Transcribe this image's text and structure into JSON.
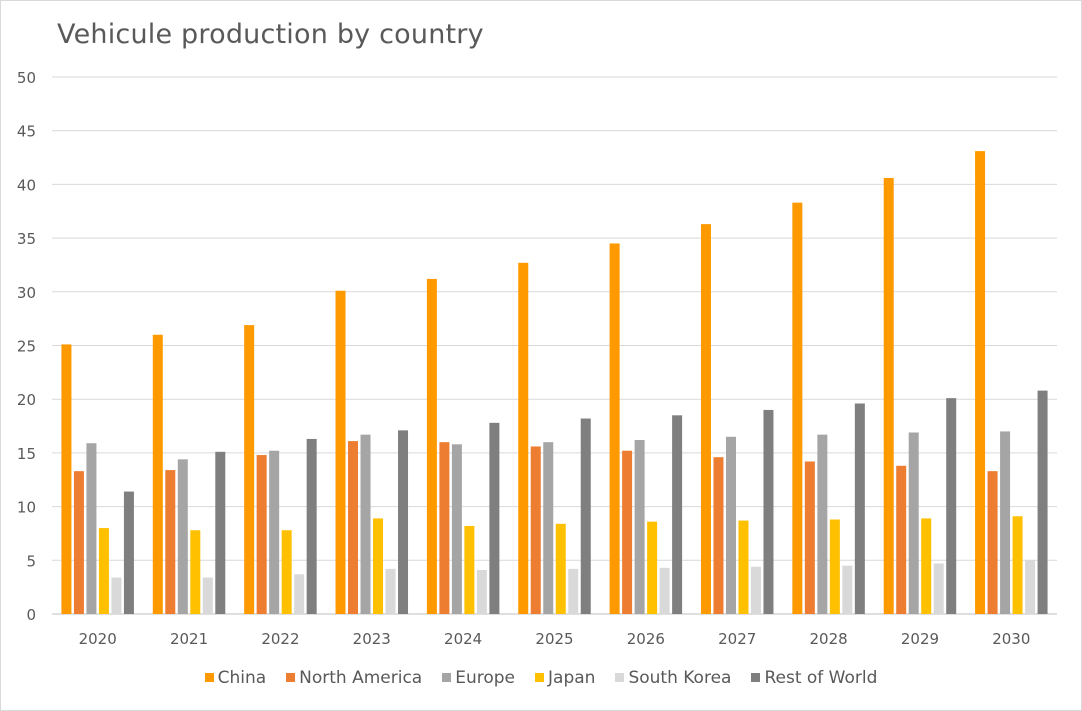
{
  "chart_data": {
    "type": "bar",
    "title": "Vehicule production by country",
    "xlabel": "",
    "ylabel": "",
    "ylim": [
      0,
      50
    ],
    "yticks": [
      0,
      5,
      10,
      15,
      20,
      25,
      30,
      35,
      40,
      45,
      50
    ],
    "grid": true,
    "legend_position": "bottom",
    "categories": [
      "2020",
      "2021",
      "2022",
      "2023",
      "2024",
      "2025",
      "2026",
      "2027",
      "2028",
      "2029",
      "2030"
    ],
    "series": [
      {
        "name": "China",
        "color": "#ff9900",
        "values": [
          25.1,
          26.0,
          26.9,
          30.1,
          31.2,
          32.7,
          34.5,
          36.3,
          38.3,
          40.6,
          43.1
        ]
      },
      {
        "name": "North America",
        "color": "#ed7d31",
        "values": [
          13.3,
          13.4,
          14.8,
          16.1,
          16.0,
          15.6,
          15.2,
          14.6,
          14.2,
          13.8,
          13.3
        ]
      },
      {
        "name": "Europe",
        "color": "#a5a5a5",
        "values": [
          15.9,
          14.4,
          15.2,
          16.7,
          15.8,
          16.0,
          16.2,
          16.5,
          16.7,
          16.9,
          17.0
        ]
      },
      {
        "name": "Japan",
        "color": "#ffc000",
        "values": [
          8.0,
          7.8,
          7.8,
          8.9,
          8.2,
          8.4,
          8.6,
          8.7,
          8.8,
          8.9,
          9.1
        ]
      },
      {
        "name": "South Korea",
        "color": "#d9d9d9",
        "values": [
          3.4,
          3.4,
          3.7,
          4.2,
          4.1,
          4.2,
          4.3,
          4.4,
          4.5,
          4.7,
          5.0
        ]
      },
      {
        "name": "Rest of World",
        "color": "#7f7f7f",
        "values": [
          11.4,
          15.1,
          16.3,
          17.1,
          17.8,
          18.2,
          18.5,
          19.0,
          19.6,
          20.1,
          20.8
        ]
      }
    ]
  }
}
